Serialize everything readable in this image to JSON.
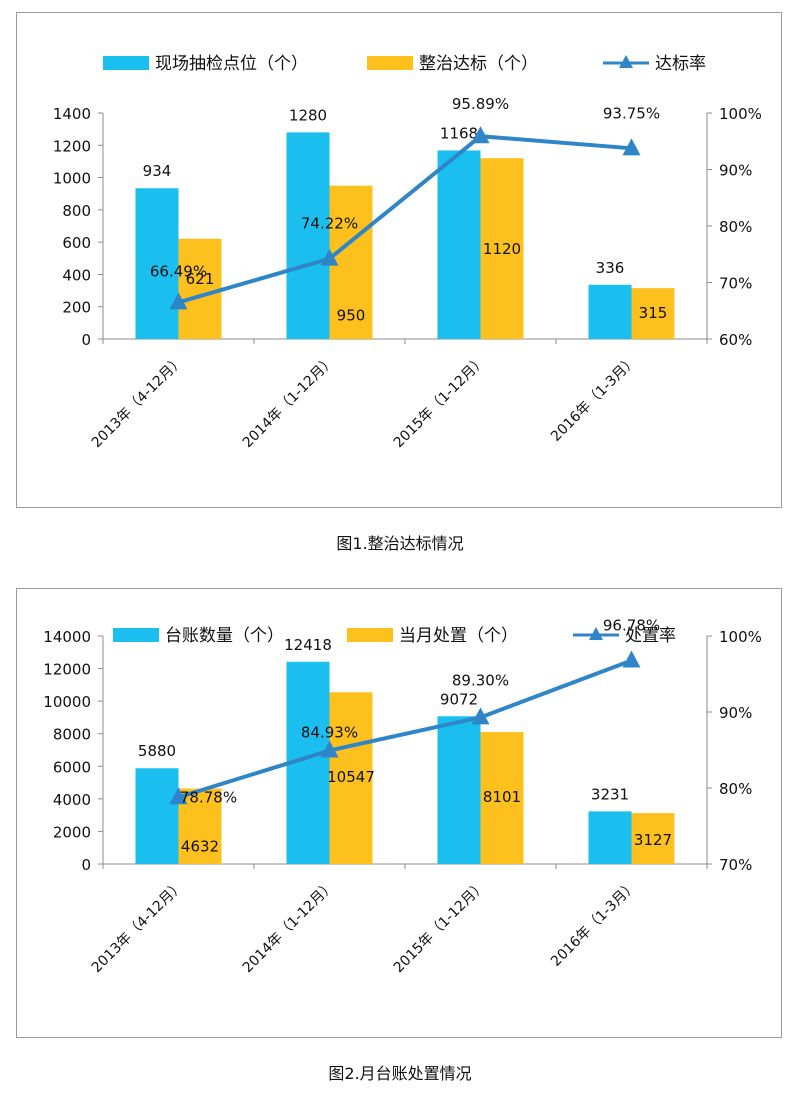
{
  "chart_data": [
    {
      "type": "bar",
      "caption": "图1.整治达标情况",
      "categories": [
        "2013年（4-12月）",
        "2014年（1-12月）",
        "2015年（1-12月）",
        "2016年（1-3月）"
      ],
      "series": [
        {
          "name": "现场抽检点位（个）",
          "kind": "bar",
          "axis": "left",
          "color": "#1BBFEF",
          "values": [
            934,
            1280,
            1168,
            336
          ],
          "labels": [
            "934",
            "1280",
            "1168",
            "336"
          ]
        },
        {
          "name": "整治达标（个）",
          "kind": "bar",
          "axis": "left",
          "color": "#FDC01C",
          "values": [
            621,
            950,
            1120,
            315
          ],
          "labels": [
            "621",
            "950",
            "1120",
            "315"
          ]
        },
        {
          "name": "达标率",
          "kind": "line",
          "axis": "right",
          "color": "#2E86C8",
          "values": [
            66.49,
            74.22,
            95.89,
            93.75
          ],
          "labels": [
            "66.49%",
            "74.22%",
            "95.89%",
            "93.75%"
          ]
        }
      ],
      "y_left": {
        "min": 0,
        "max": 1400,
        "ticks": [
          "0",
          "200",
          "400",
          "600",
          "800",
          "1000",
          "1200",
          "1400"
        ]
      },
      "y_right": {
        "min": 60,
        "max": 100,
        "ticks": [
          "60%",
          "70%",
          "80%",
          "90%",
          "100%"
        ]
      },
      "legend": "top",
      "grid": false
    },
    {
      "type": "bar",
      "caption": "图2.月台账处置情况",
      "categories": [
        "2013年（4-12月）",
        "2014年（1-12月）",
        "2015年（1-12月）",
        "2016年（1-3月）"
      ],
      "series": [
        {
          "name": "台账数量（个）",
          "kind": "bar",
          "axis": "left",
          "color": "#1BBFEF",
          "values": [
            5880,
            12418,
            9072,
            3231
          ],
          "labels": [
            "5880",
            "12418",
            "9072",
            "3231"
          ]
        },
        {
          "name": "当月处置（个）",
          "kind": "bar",
          "axis": "left",
          "color": "#FDC01C",
          "values": [
            4632,
            10547,
            8101,
            3127
          ],
          "labels": [
            "4632",
            "10547",
            "8101",
            "3127"
          ]
        },
        {
          "name": "处置率",
          "kind": "line",
          "axis": "right",
          "color": "#2E86C8",
          "values": [
            78.78,
            84.93,
            89.3,
            96.78
          ],
          "labels": [
            "78.78%",
            "84.93%",
            "89.30%",
            "96.78%"
          ]
        }
      ],
      "y_left": {
        "min": 0,
        "max": 14000,
        "ticks": [
          "0",
          "2000",
          "4000",
          "6000",
          "8000",
          "10000",
          "12000",
          "14000"
        ]
      },
      "y_right": {
        "min": 70,
        "max": 100,
        "ticks": [
          "70%",
          "80%",
          "90%",
          "100%"
        ]
      },
      "legend": "top",
      "grid": false
    }
  ]
}
